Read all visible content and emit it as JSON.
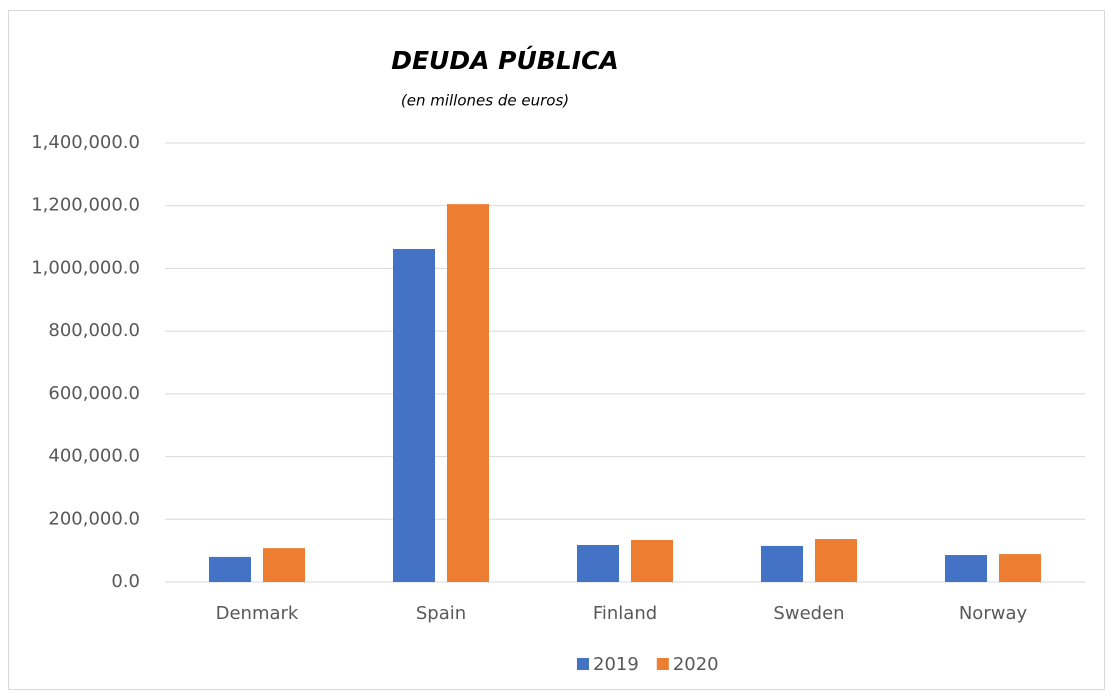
{
  "chart_data": {
    "type": "bar",
    "title": "DEUDA PÚBLICA",
    "subtitle": "(en millones de euros)",
    "categories": [
      "Denmark",
      "Spain",
      "Finland",
      "Sweden",
      "Norway"
    ],
    "series": [
      {
        "name": "2019",
        "color": "#4472c4",
        "values": [
          80000,
          1062000,
          118000,
          115000,
          86000
        ]
      },
      {
        "name": "2020",
        "color": "#ed7d31",
        "values": [
          108000,
          1205000,
          134000,
          137000,
          89000
        ]
      }
    ],
    "ylim": [
      0,
      1400000
    ],
    "yticks": [
      {
        "value": 0,
        "label": "0.0"
      },
      {
        "value": 200000,
        "label": "200,000.0"
      },
      {
        "value": 400000,
        "label": "400,000.0"
      },
      {
        "value": 600000,
        "label": "600,000.0"
      },
      {
        "value": 800000,
        "label": "800,000.0"
      },
      {
        "value": 1000000,
        "label": "1,000,000.0"
      },
      {
        "value": 1200000,
        "label": "1,200,000.0"
      },
      {
        "value": 1400000,
        "label": "1,400,000.0"
      }
    ],
    "grid": true,
    "legend": "bottom"
  }
}
